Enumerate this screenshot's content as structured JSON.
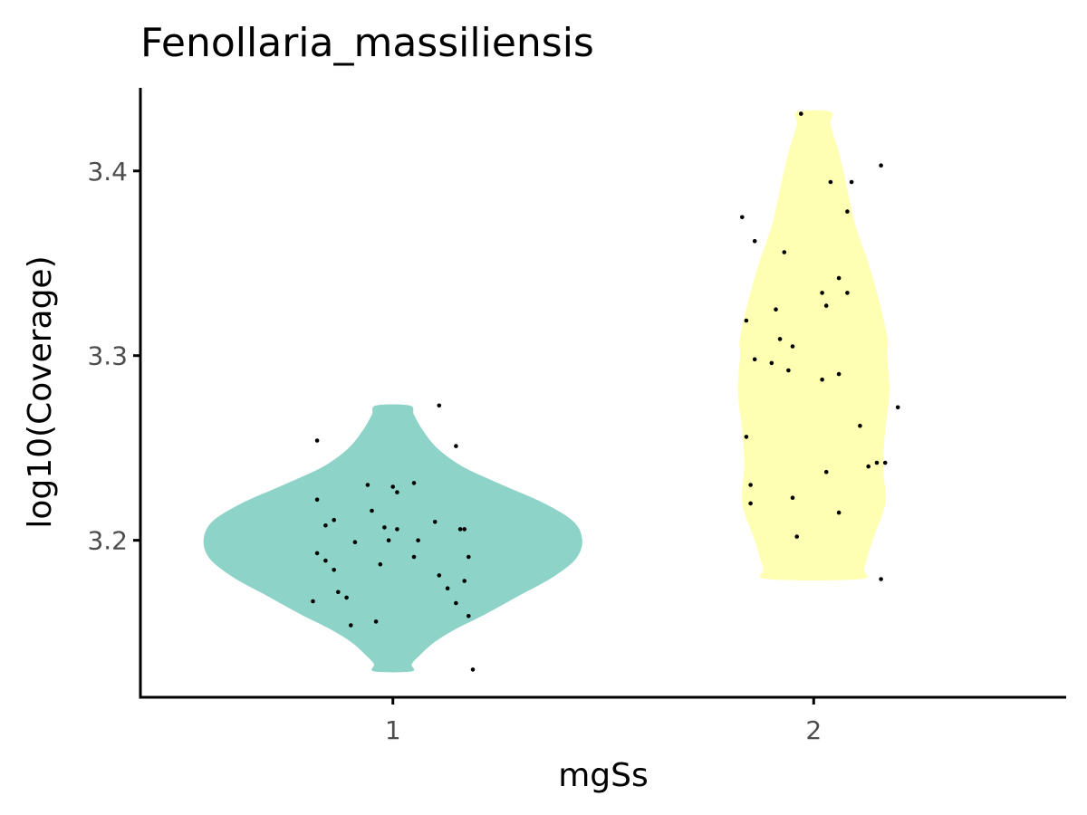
{
  "chart_data": {
    "type": "violin",
    "title": "Fenollaria_massiliensis",
    "xlabel": "mgSs",
    "ylabel": "log10(Coverage)",
    "categories": [
      "1",
      "2"
    ],
    "ylim": [
      3.115,
      3.445
    ],
    "yticks": [
      3.2,
      3.3,
      3.4
    ],
    "ytick_labels": [
      "3.2",
      "3.3",
      "3.4"
    ],
    "violin_colors": [
      "#8dd3c7",
      "#ffffb3"
    ],
    "violins": [
      {
        "category": "1",
        "color": "#8dd3c7",
        "density": [
          {
            "y": 3.129,
            "w": 0.09
          },
          {
            "y": 3.133,
            "w": 0.09
          },
          {
            "y": 3.138,
            "w": 0.13
          },
          {
            "y": 3.145,
            "w": 0.2
          },
          {
            "y": 3.152,
            "w": 0.3
          },
          {
            "y": 3.16,
            "w": 0.44
          },
          {
            "y": 3.17,
            "w": 0.6
          },
          {
            "y": 3.18,
            "w": 0.76
          },
          {
            "y": 3.19,
            "w": 0.87
          },
          {
            "y": 3.2,
            "w": 0.9
          },
          {
            "y": 3.21,
            "w": 0.86
          },
          {
            "y": 3.22,
            "w": 0.72
          },
          {
            "y": 3.23,
            "w": 0.52
          },
          {
            "y": 3.24,
            "w": 0.33
          },
          {
            "y": 3.25,
            "w": 0.21
          },
          {
            "y": 3.26,
            "w": 0.14
          },
          {
            "y": 3.268,
            "w": 0.1
          },
          {
            "y": 3.273,
            "w": 0.08
          }
        ],
        "points": [
          [
            0.82,
            3.254
          ],
          [
            1.11,
            3.273
          ],
          [
            1.15,
            3.251
          ],
          [
            0.94,
            3.23
          ],
          [
            1.05,
            3.231
          ],
          [
            1.0,
            3.229
          ],
          [
            1.01,
            3.226
          ],
          [
            0.82,
            3.222
          ],
          [
            0.95,
            3.216
          ],
          [
            0.86,
            3.211
          ],
          [
            1.1,
            3.21
          ],
          [
            0.84,
            3.208
          ],
          [
            0.98,
            3.207
          ],
          [
            1.01,
            3.206
          ],
          [
            1.16,
            3.206
          ],
          [
            1.17,
            3.206
          ],
          [
            0.91,
            3.199
          ],
          [
            0.99,
            3.2
          ],
          [
            1.06,
            3.2
          ],
          [
            0.82,
            3.193
          ],
          [
            1.05,
            3.191
          ],
          [
            1.18,
            3.191
          ],
          [
            0.84,
            3.189
          ],
          [
            0.97,
            3.187
          ],
          [
            0.86,
            3.184
          ],
          [
            1.11,
            3.181
          ],
          [
            1.17,
            3.178
          ],
          [
            1.13,
            3.174
          ],
          [
            0.87,
            3.172
          ],
          [
            0.89,
            3.169
          ],
          [
            0.81,
            3.167
          ],
          [
            1.15,
            3.166
          ],
          [
            1.18,
            3.159
          ],
          [
            0.96,
            3.156
          ],
          [
            0.9,
            3.154
          ],
          [
            1.19,
            3.13
          ]
        ]
      },
      {
        "category": "2",
        "color": "#ffffb3",
        "density": [
          {
            "y": 3.179,
            "w": 0.22
          },
          {
            "y": 3.185,
            "w": 0.24
          },
          {
            "y": 3.2,
            "w": 0.28
          },
          {
            "y": 3.22,
            "w": 0.34
          },
          {
            "y": 3.24,
            "w": 0.33
          },
          {
            "y": 3.26,
            "w": 0.34
          },
          {
            "y": 3.28,
            "w": 0.36
          },
          {
            "y": 3.3,
            "w": 0.35
          },
          {
            "y": 3.31,
            "w": 0.35
          },
          {
            "y": 3.33,
            "w": 0.31
          },
          {
            "y": 3.35,
            "w": 0.26
          },
          {
            "y": 3.37,
            "w": 0.2
          },
          {
            "y": 3.39,
            "w": 0.16
          },
          {
            "y": 3.41,
            "w": 0.12
          },
          {
            "y": 3.425,
            "w": 0.08
          },
          {
            "y": 3.432,
            "w": 0.08
          }
        ],
        "points": [
          [
            1.97,
            3.431
          ],
          [
            2.16,
            3.403
          ],
          [
            2.04,
            3.394
          ],
          [
            2.09,
            3.394
          ],
          [
            1.83,
            3.375
          ],
          [
            2.08,
            3.378
          ],
          [
            1.86,
            3.362
          ],
          [
            1.93,
            3.356
          ],
          [
            2.06,
            3.342
          ],
          [
            2.02,
            3.334
          ],
          [
            2.08,
            3.334
          ],
          [
            2.03,
            3.327
          ],
          [
            1.91,
            3.325
          ],
          [
            1.84,
            3.319
          ],
          [
            1.92,
            3.309
          ],
          [
            1.95,
            3.305
          ],
          [
            1.86,
            3.298
          ],
          [
            1.9,
            3.296
          ],
          [
            1.94,
            3.292
          ],
          [
            2.06,
            3.29
          ],
          [
            2.02,
            3.287
          ],
          [
            2.2,
            3.272
          ],
          [
            2.11,
            3.262
          ],
          [
            1.84,
            3.256
          ],
          [
            2.15,
            3.242
          ],
          [
            2.17,
            3.242
          ],
          [
            2.13,
            3.24
          ],
          [
            2.03,
            3.237
          ],
          [
            1.85,
            3.23
          ],
          [
            1.95,
            3.223
          ],
          [
            1.85,
            3.22
          ],
          [
            2.06,
            3.215
          ],
          [
            1.96,
            3.202
          ],
          [
            2.16,
            3.179
          ]
        ]
      }
    ]
  }
}
